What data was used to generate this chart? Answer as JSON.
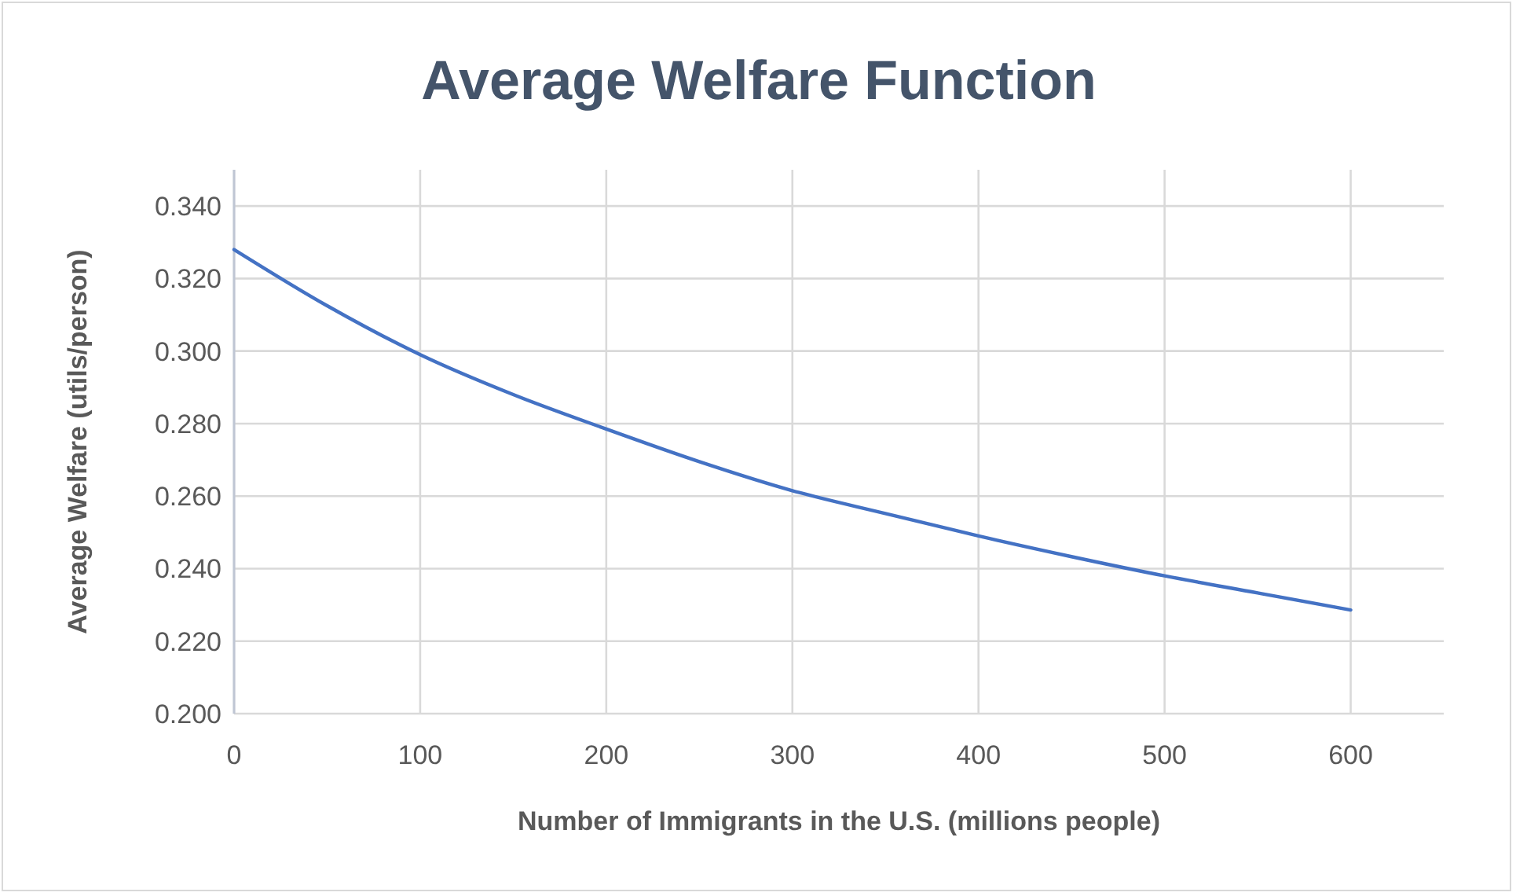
{
  "chart_data": {
    "type": "line",
    "title": "Average Welfare Function",
    "xlabel": "Number of Immigrants in the U.S. (millions people)",
    "ylabel": "Average Welfare (utils/person)",
    "x": [
      0,
      50,
      100,
      150,
      200,
      250,
      300,
      350,
      400,
      450,
      500,
      550,
      600
    ],
    "series": [
      {
        "color": "#4472c4",
        "values": [
          0.328,
          0.3125,
          0.299,
          0.288,
          0.2785,
          0.2695,
          0.2615,
          0.2552,
          0.249,
          0.2433,
          0.238,
          0.2333,
          0.2286
        ]
      }
    ],
    "xlim": [
      0,
      650
    ],
    "xticks": [
      0,
      100,
      200,
      300,
      400,
      500,
      600
    ],
    "ylim": [
      0.2,
      0.35
    ],
    "yticks": [
      {
        "value": 0.2,
        "label": "0.200"
      },
      {
        "value": 0.22,
        "label": "0.220"
      },
      {
        "value": 0.24,
        "label": "0.240"
      },
      {
        "value": 0.26,
        "label": "0.260"
      },
      {
        "value": 0.28,
        "label": "0.280"
      },
      {
        "value": 0.3,
        "label": "0.300"
      },
      {
        "value": 0.32,
        "label": "0.320"
      },
      {
        "value": 0.34,
        "label": "0.340"
      }
    ],
    "grid": true,
    "marker": "none",
    "line_style": "solid"
  }
}
